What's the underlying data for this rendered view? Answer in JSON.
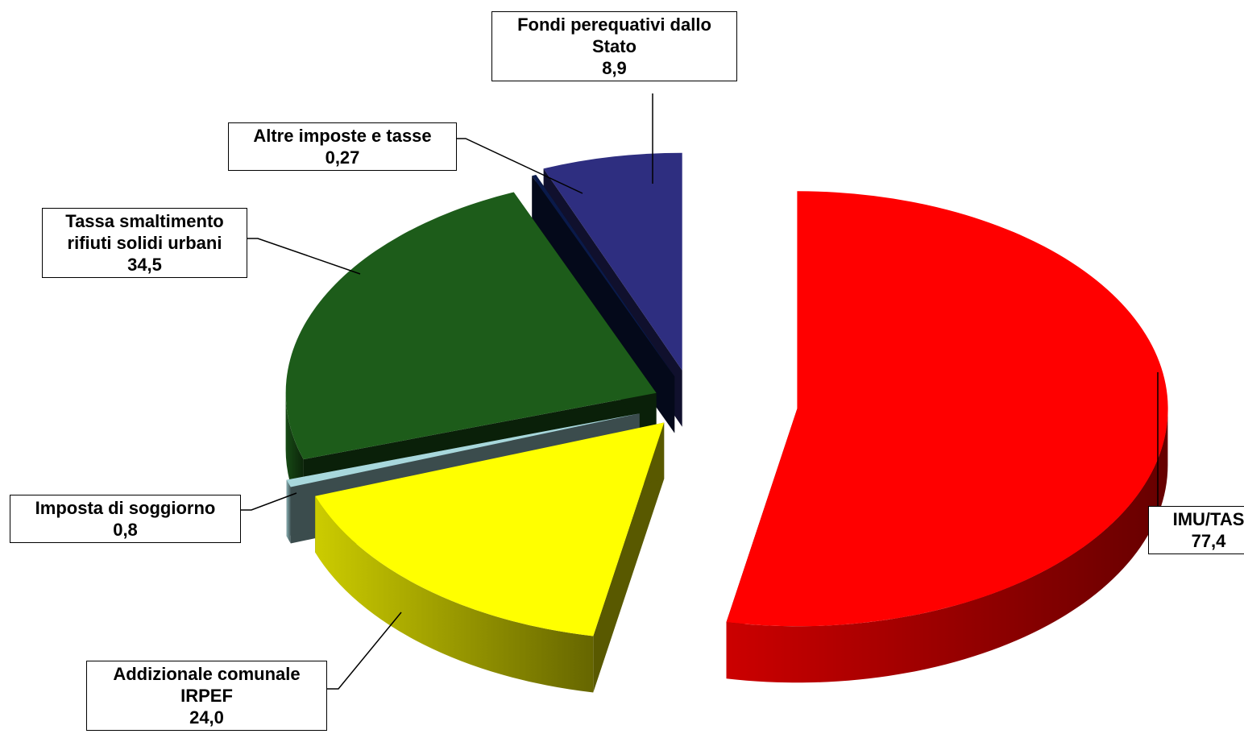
{
  "chart_data": {
    "type": "pie3d",
    "categories": [
      "IMU/TAS",
      "Addizionale comunale IRPEF",
      "Imposta di soggiorno",
      "Tassa smaltimento rifiuti solidi urbani",
      "Altre imposte e tasse",
      "Fondi perequativi dallo Stato"
    ],
    "values": [
      77.4,
      24.0,
      0.8,
      34.5,
      0.27,
      8.9
    ],
    "value_labels": [
      "77,4",
      "24,0",
      "0,8",
      "34,5",
      "0,27",
      "8,9"
    ],
    "colors": [
      "#ff0000",
      "#ffff00",
      "#a8d8dc",
      "#1d5c1a",
      "#0a1a4a",
      "#2e2e80"
    ]
  }
}
